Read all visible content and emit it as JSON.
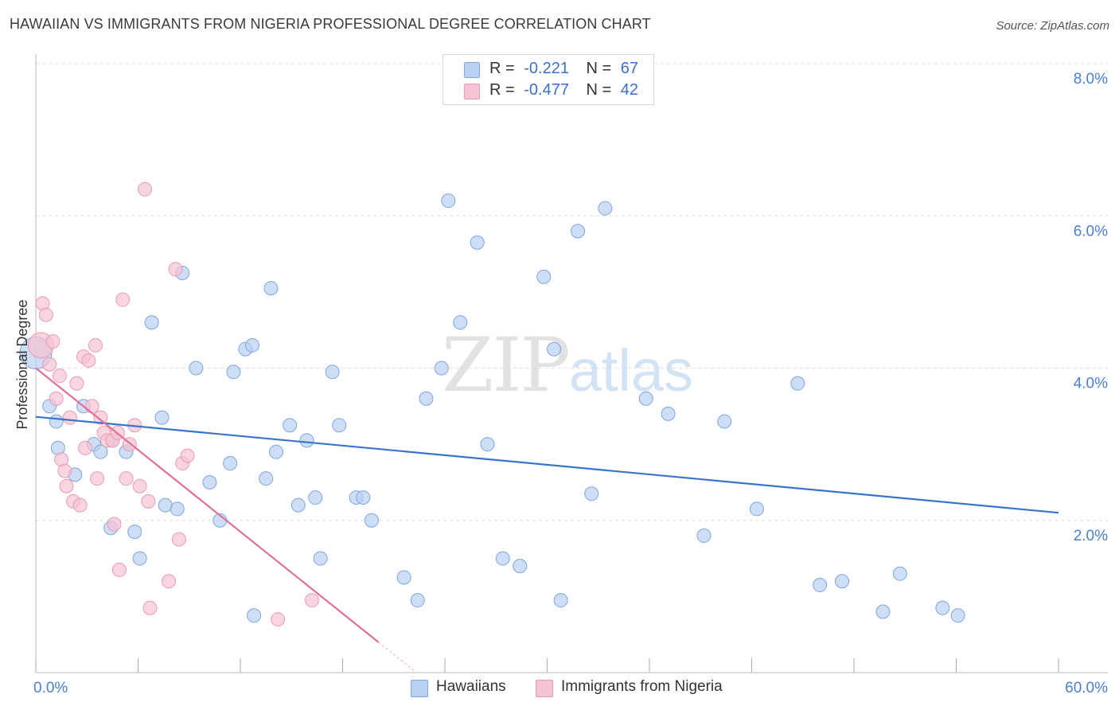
{
  "header": {
    "title": "HAWAIIAN VS IMMIGRANTS FROM NIGERIA PROFESSIONAL DEGREE CORRELATION CHART",
    "source": "Source: ZipAtlas.com"
  },
  "watermark": {
    "zip": "ZIP",
    "atlas": "atlas"
  },
  "legend": {
    "rows": [
      {
        "r_label": "R =",
        "r_value": "-0.221",
        "n_label": "N =",
        "n_value": "67"
      },
      {
        "r_label": "R =",
        "r_value": "-0.477",
        "n_label": "N =",
        "n_value": "42"
      }
    ]
  },
  "bottom_legend": {
    "series1": "Hawaiians",
    "series2": "Immigrants from Nigeria"
  },
  "colors": {
    "blue_fill": "#b8d0f2",
    "blue_stroke": "#7ea6e0",
    "blue_line": "#3b74cc",
    "pink_fill": "#f6c3d3",
    "pink_stroke": "#e99ab4",
    "pink_line": "#e0709a",
    "grid": "#dddddd",
    "tick_text": "#4a7fd4"
  },
  "chart_data": {
    "type": "scatter",
    "title": "HAWAIIAN VS IMMIGRANTS FROM NIGERIA PROFESSIONAL DEGREE CORRELATION CHART",
    "xlabel": "",
    "ylabel": "Professional Degree",
    "xlim": [
      0,
      60
    ],
    "ylim": [
      0,
      8
    ],
    "x_tick_labels": [
      "0.0%",
      "60.0%"
    ],
    "y_ticks": [
      2,
      4,
      6,
      8
    ],
    "y_tick_labels": [
      "2.0%",
      "4.0%",
      "6.0%",
      "8.0%"
    ],
    "grid": "horizontal dashed",
    "legend_position": "top-center",
    "series": [
      {
        "name": "Hawaiians",
        "r": -0.221,
        "n": 67,
        "trend": {
          "x": [
            0,
            60
          ],
          "y": [
            3.36,
            2.1
          ]
        },
        "points": [
          [
            0.0,
            4.2
          ],
          [
            0.8,
            3.5
          ],
          [
            1.2,
            3.3
          ],
          [
            1.3,
            2.95
          ],
          [
            2.3,
            2.6
          ],
          [
            2.8,
            3.5
          ],
          [
            3.4,
            3.0
          ],
          [
            3.8,
            2.9
          ],
          [
            4.4,
            1.9
          ],
          [
            4.5,
            3.05
          ],
          [
            5.3,
            2.9
          ],
          [
            5.8,
            1.85
          ],
          [
            6.1,
            1.5
          ],
          [
            6.8,
            4.6
          ],
          [
            7.4,
            3.35
          ],
          [
            7.6,
            2.2
          ],
          [
            8.3,
            2.15
          ],
          [
            8.6,
            5.25
          ],
          [
            9.4,
            4.0
          ],
          [
            10.2,
            2.5
          ],
          [
            10.8,
            2.0
          ],
          [
            11.4,
            2.75
          ],
          [
            11.6,
            3.95
          ],
          [
            12.3,
            4.25
          ],
          [
            12.7,
            4.3
          ],
          [
            12.8,
            0.75
          ],
          [
            13.5,
            2.55
          ],
          [
            13.8,
            5.05
          ],
          [
            14.1,
            2.9
          ],
          [
            14.9,
            3.25
          ],
          [
            15.4,
            2.2
          ],
          [
            15.9,
            3.05
          ],
          [
            16.4,
            2.3
          ],
          [
            16.7,
            1.5
          ],
          [
            17.4,
            3.95
          ],
          [
            17.8,
            3.25
          ],
          [
            18.8,
            2.3
          ],
          [
            19.2,
            2.3
          ],
          [
            19.7,
            2.0
          ],
          [
            21.6,
            1.25
          ],
          [
            22.4,
            0.95
          ],
          [
            22.9,
            3.6
          ],
          [
            23.8,
            4.0
          ],
          [
            24.2,
            6.2
          ],
          [
            24.9,
            4.6
          ],
          [
            25.9,
            5.65
          ],
          [
            26.5,
            3.0
          ],
          [
            27.4,
            1.5
          ],
          [
            28.4,
            1.4
          ],
          [
            29.8,
            5.2
          ],
          [
            30.4,
            4.25
          ],
          [
            30.8,
            0.95
          ],
          [
            31.8,
            5.8
          ],
          [
            32.6,
            2.35
          ],
          [
            33.4,
            6.1
          ],
          [
            35.8,
            3.6
          ],
          [
            37.1,
            3.4
          ],
          [
            39.2,
            1.8
          ],
          [
            40.4,
            3.3
          ],
          [
            42.3,
            2.15
          ],
          [
            44.7,
            3.8
          ],
          [
            46.0,
            1.15
          ],
          [
            47.3,
            1.2
          ],
          [
            49.7,
            0.8
          ],
          [
            50.7,
            1.3
          ],
          [
            53.2,
            0.85
          ],
          [
            54.1,
            0.75
          ]
        ]
      },
      {
        "name": "Immigrants from Nigeria",
        "r": -0.477,
        "n": 42,
        "trend": {
          "x": [
            0,
            20.1
          ],
          "y": [
            4.0,
            0.4
          ]
        },
        "points": [
          [
            0.3,
            4.3
          ],
          [
            0.4,
            4.85
          ],
          [
            0.6,
            4.7
          ],
          [
            0.8,
            4.05
          ],
          [
            1.0,
            4.35
          ],
          [
            1.2,
            3.6
          ],
          [
            1.4,
            3.9
          ],
          [
            1.5,
            2.8
          ],
          [
            1.7,
            2.65
          ],
          [
            1.8,
            2.45
          ],
          [
            2.0,
            3.35
          ],
          [
            2.2,
            2.25
          ],
          [
            2.4,
            3.8
          ],
          [
            2.6,
            2.2
          ],
          [
            2.8,
            4.15
          ],
          [
            2.9,
            2.95
          ],
          [
            3.1,
            4.1
          ],
          [
            3.3,
            3.5
          ],
          [
            3.5,
            4.3
          ],
          [
            3.6,
            2.55
          ],
          [
            3.8,
            3.35
          ],
          [
            4.0,
            3.15
          ],
          [
            4.2,
            3.05
          ],
          [
            4.5,
            3.05
          ],
          [
            4.6,
            1.95
          ],
          [
            4.8,
            3.15
          ],
          [
            4.9,
            1.35
          ],
          [
            5.1,
            4.9
          ],
          [
            5.3,
            2.55
          ],
          [
            5.5,
            3.0
          ],
          [
            5.8,
            3.25
          ],
          [
            6.1,
            2.45
          ],
          [
            6.4,
            6.35
          ],
          [
            6.6,
            2.25
          ],
          [
            6.7,
            0.85
          ],
          [
            7.8,
            1.2
          ],
          [
            8.2,
            5.3
          ],
          [
            8.4,
            1.75
          ],
          [
            8.6,
            2.75
          ],
          [
            8.9,
            2.85
          ],
          [
            14.2,
            0.7
          ],
          [
            16.2,
            0.95
          ]
        ]
      }
    ]
  }
}
